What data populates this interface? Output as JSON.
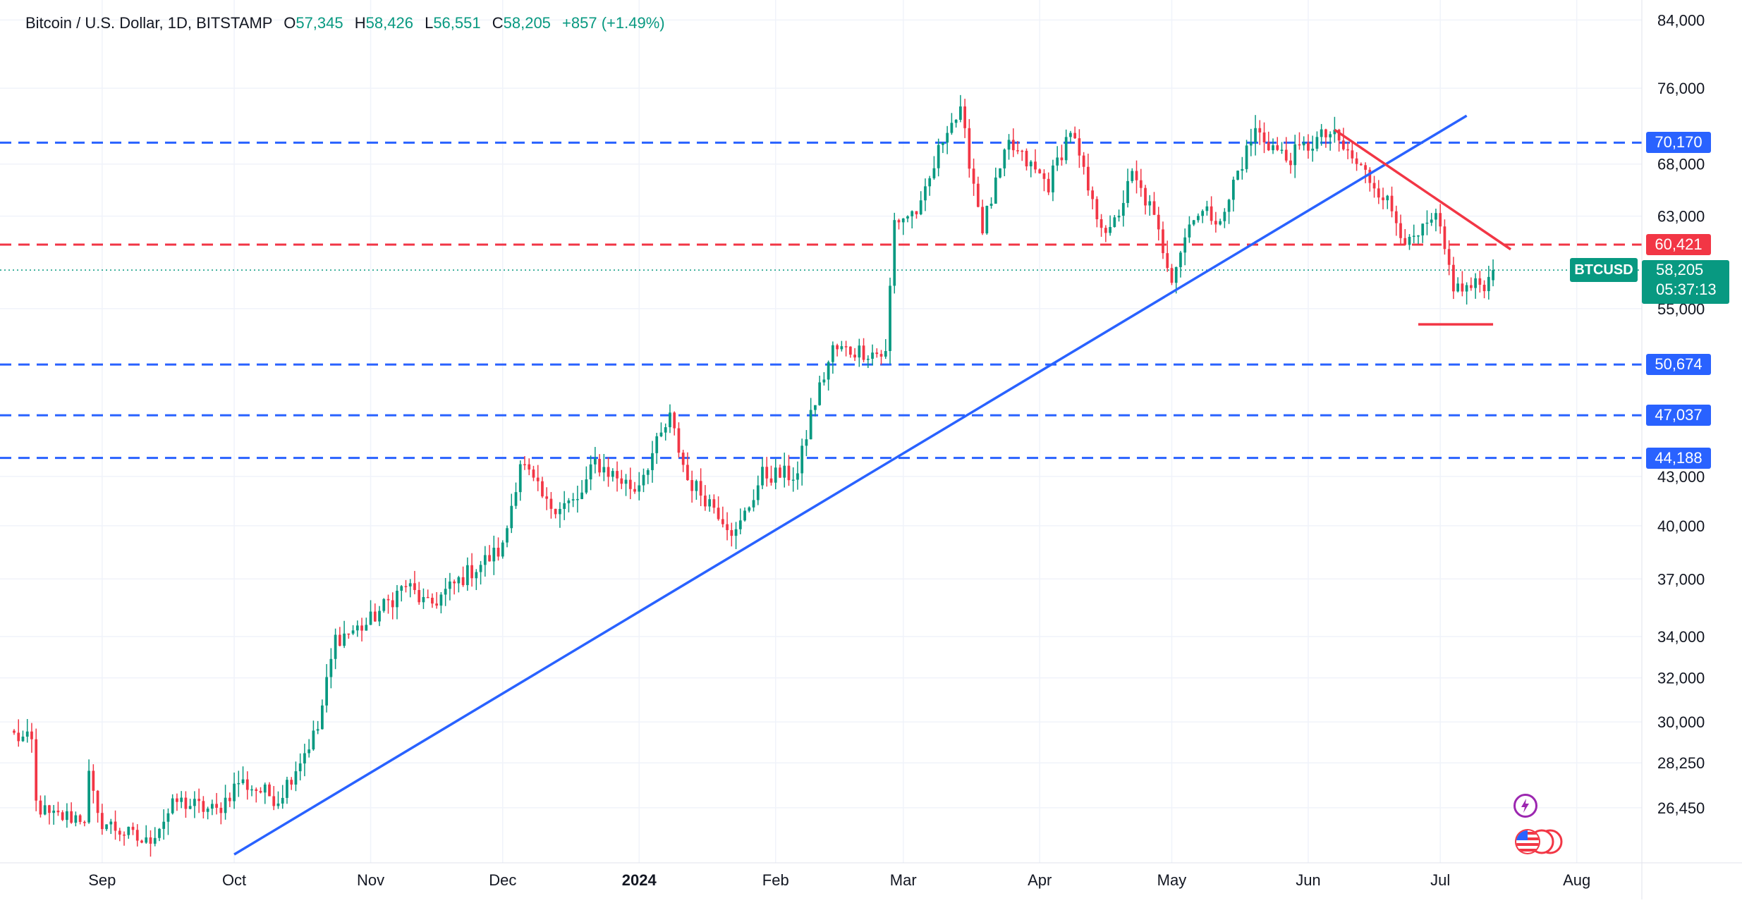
{
  "legend": {
    "symbol": "Bitcoin / U.S. Dollar, 1D, BITSTAMP",
    "o_label": "O",
    "o_value": "57,345",
    "h_label": "H",
    "h_value": "58,426",
    "l_label": "L",
    "l_value": "56,551",
    "c_label": "C",
    "c_value": "58,205",
    "change": "+857 (+1.49%)"
  },
  "price_badge": {
    "symbol": "BTCUSD",
    "price": "58,205",
    "countdown": "05:37:13"
  },
  "colors": {
    "up": "#089981",
    "down": "#f23645",
    "blue": "#2962ff",
    "red": "#f23645",
    "grid": "#f0f3fa"
  },
  "icons": [
    "lightning-icon",
    "us-flag-icon"
  ],
  "chart_data": {
    "type": "candlestick",
    "title": "Bitcoin / U.S. Dollar, 1D, BITSTAMP",
    "y_scale": "log",
    "ylim": [
      24600,
      86500
    ],
    "y_ticks": [
      84000,
      76000,
      68000,
      63000,
      55000,
      43000,
      40000,
      37000,
      34000,
      32000,
      30000,
      28250,
      26450
    ],
    "y_tick_labels": [
      "84,000",
      "76,000",
      "68,000",
      "63,000",
      "55,000",
      "43,000",
      "40,000",
      "37,000",
      "34,000",
      "32,000",
      "30,000",
      "28,250",
      "26,450"
    ],
    "x_ticks": [
      {
        "date": "2023-09-01",
        "label": "Sep",
        "bold": false
      },
      {
        "date": "2023-10-01",
        "label": "Oct",
        "bold": false
      },
      {
        "date": "2023-11-01",
        "label": "Nov",
        "bold": false
      },
      {
        "date": "2023-12-01",
        "label": "Dec",
        "bold": false
      },
      {
        "date": "2024-01-01",
        "label": "2024",
        "bold": true
      },
      {
        "date": "2024-02-01",
        "label": "Feb",
        "bold": false
      },
      {
        "date": "2024-03-01",
        "label": "Mar",
        "bold": false
      },
      {
        "date": "2024-04-01",
        "label": "Apr",
        "bold": false
      },
      {
        "date": "2024-05-01",
        "label": "May",
        "bold": false
      },
      {
        "date": "2024-06-01",
        "label": "Jun",
        "bold": false
      },
      {
        "date": "2024-07-01",
        "label": "Jul",
        "bold": false
      },
      {
        "date": "2024-08-01",
        "label": "Aug",
        "bold": false
      }
    ],
    "x_range": [
      "2023-08-12",
      "2024-08-19"
    ],
    "horizontal_levels": [
      {
        "value": 70170,
        "label": "70,170",
        "color": "blue"
      },
      {
        "value": 60421,
        "label": "60,421",
        "color": "red"
      },
      {
        "value": 50674,
        "label": "50,674",
        "color": "blue"
      },
      {
        "value": 47037,
        "label": "47,037",
        "color": "blue"
      },
      {
        "value": 44188,
        "label": "44,188",
        "color": "blue"
      }
    ],
    "trendlines": [
      {
        "color": "blue",
        "start": [
          "2023-10-01",
          24700
        ],
        "end": [
          "2024-07-07",
          73000
        ]
      },
      {
        "color": "red",
        "start": [
          "2024-06-07",
          71500
        ],
        "end": [
          "2024-07-17",
          60000
        ]
      },
      {
        "color": "red",
        "start": [
          "2024-06-26",
          53750
        ],
        "end": [
          "2024-07-13",
          53750
        ]
      }
    ],
    "last_price": 58205,
    "anchors": [
      [
        "2023-08-12",
        29400
      ],
      [
        "2023-08-16",
        29100
      ],
      [
        "2023-08-17",
        26600
      ],
      [
        "2023-08-20",
        26100
      ],
      [
        "2023-08-28",
        26100
      ],
      [
        "2023-08-29",
        27700
      ],
      [
        "2023-08-31",
        26000
      ],
      [
        "2023-09-11",
        25100
      ],
      [
        "2023-09-18",
        26700
      ],
      [
        "2023-09-27",
        26300
      ],
      [
        "2023-10-02",
        27500
      ],
      [
        "2023-10-11",
        26800
      ],
      [
        "2023-10-16",
        28400
      ],
      [
        "2023-10-20",
        29700
      ],
      [
        "2023-10-24",
        33900
      ],
      [
        "2023-10-31",
        34600
      ],
      [
        "2023-11-09",
        36700
      ],
      [
        "2023-11-14",
        35500
      ],
      [
        "2023-11-23",
        37300
      ],
      [
        "2023-12-01",
        38700
      ],
      [
        "2023-12-05",
        44000
      ],
      [
        "2023-12-11",
        41200
      ],
      [
        "2023-12-18",
        41400
      ],
      [
        "2023-12-22",
        43900
      ],
      [
        "2023-12-31",
        42200
      ],
      [
        "2024-01-08",
        46800
      ],
      [
        "2024-01-12",
        42800
      ],
      [
        "2024-01-18",
        41200
      ],
      [
        "2024-01-23",
        39500
      ],
      [
        "2024-01-29",
        43100
      ],
      [
        "2024-02-06",
        43100
      ],
      [
        "2024-02-09",
        47100
      ],
      [
        "2024-02-14",
        51800
      ],
      [
        "2024-02-21",
        51700
      ],
      [
        "2024-02-26",
        51400
      ],
      [
        "2024-02-28",
        62500
      ],
      [
        "2024-03-05",
        63700
      ],
      [
        "2024-03-11",
        72100
      ],
      [
        "2024-03-14",
        73100
      ],
      [
        "2024-03-19",
        62000
      ],
      [
        "2024-03-25",
        69900
      ],
      [
        "2024-04-03",
        66000
      ],
      [
        "2024-04-08",
        71600
      ],
      [
        "2024-04-13",
        63900
      ],
      [
        "2024-04-17",
        61300
      ],
      [
        "2024-04-22",
        66800
      ],
      [
        "2024-04-26",
        63800
      ],
      [
        "2024-05-01",
        57800
      ],
      [
        "2024-05-06",
        63400
      ],
      [
        "2024-05-13",
        62900
      ],
      [
        "2024-05-15",
        66200
      ],
      [
        "2024-05-20",
        71400
      ],
      [
        "2024-05-27",
        68500
      ],
      [
        "2024-06-04",
        70700
      ],
      [
        "2024-06-06",
        71100
      ],
      [
        "2024-06-12",
        68000
      ],
      [
        "2024-06-18",
        65100
      ],
      [
        "2024-06-24",
        60300
      ],
      [
        "2024-06-30",
        62700
      ],
      [
        "2024-07-04",
        57000
      ],
      [
        "2024-07-05",
        56600
      ],
      [
        "2024-07-08",
        56700
      ],
      [
        "2024-07-12",
        57345
      ],
      [
        "2024-07-13",
        58205
      ]
    ]
  }
}
